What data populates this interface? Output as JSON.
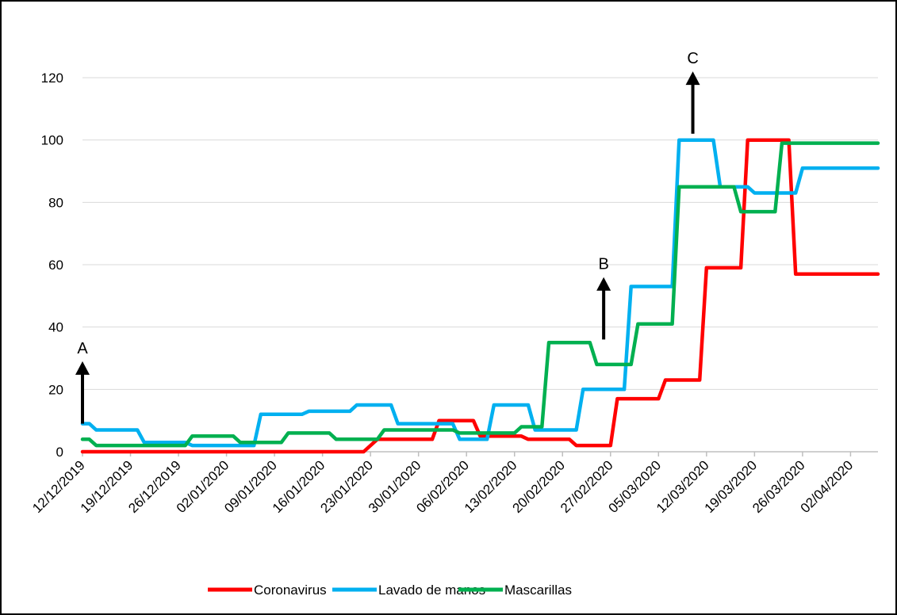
{
  "chart_data": {
    "type": "line",
    "title": "",
    "xlabel": "",
    "ylabel": "",
    "ylim": [
      0,
      120
    ],
    "yticks": [
      0,
      20,
      40,
      60,
      80,
      100,
      120
    ],
    "grid": "horizontal",
    "legend_position": "bottom",
    "x_tick_labels": [
      "12/12/2019",
      "19/12/2019",
      "26/12/2019",
      "02/01/2020",
      "09/01/2020",
      "16/01/2020",
      "23/01/2020",
      "30/01/2020",
      "06/02/2020",
      "13/02/2020",
      "20/02/2020",
      "27/02/2020",
      "05/03/2020",
      "12/03/2020",
      "19/03/2020",
      "26/03/2020",
      "02/04/2020"
    ],
    "x_start": "12/12/2019",
    "x_end": "06/04/2020",
    "series": [
      {
        "name": "Coronavirus",
        "color": "#ff0000",
        "points": [
          [
            "12/12/2019",
            0
          ],
          [
            "22/01/2020",
            0
          ],
          [
            "24/01/2020",
            4
          ],
          [
            "01/02/2020",
            4
          ],
          [
            "02/02/2020",
            10
          ],
          [
            "07/02/2020",
            10
          ],
          [
            "08/02/2020",
            5
          ],
          [
            "14/02/2020",
            5
          ],
          [
            "15/02/2020",
            4
          ],
          [
            "21/02/2020",
            4
          ],
          [
            "22/02/2020",
            2
          ],
          [
            "27/02/2020",
            2
          ],
          [
            "28/02/2020",
            17
          ],
          [
            "05/03/2020",
            17
          ],
          [
            "06/03/2020",
            23
          ],
          [
            "11/03/2020",
            23
          ],
          [
            "12/03/2020",
            59
          ],
          [
            "17/03/2020",
            59
          ],
          [
            "18/03/2020",
            100
          ],
          [
            "24/03/2020",
            100
          ],
          [
            "25/03/2020",
            57
          ],
          [
            "06/04/2020",
            57
          ]
        ]
      },
      {
        "name": "Lavado de manos",
        "color": "#00b0f0",
        "points": [
          [
            "12/12/2019",
            9
          ],
          [
            "13/12/2019",
            9
          ],
          [
            "14/12/2019",
            7
          ],
          [
            "20/12/2019",
            7
          ],
          [
            "21/12/2019",
            3
          ],
          [
            "27/12/2019",
            3
          ],
          [
            "28/12/2019",
            2
          ],
          [
            "06/01/2020",
            2
          ],
          [
            "07/01/2020",
            12
          ],
          [
            "13/01/2020",
            12
          ],
          [
            "14/01/2020",
            13
          ],
          [
            "20/01/2020",
            13
          ],
          [
            "21/01/2020",
            15
          ],
          [
            "26/01/2020",
            15
          ],
          [
            "27/01/2020",
            9
          ],
          [
            "04/02/2020",
            9
          ],
          [
            "05/02/2020",
            4
          ],
          [
            "09/02/2020",
            4
          ],
          [
            "10/02/2020",
            15
          ],
          [
            "15/02/2020",
            15
          ],
          [
            "16/02/2020",
            7
          ],
          [
            "22/02/2020",
            7
          ],
          [
            "23/02/2020",
            20
          ],
          [
            "29/02/2020",
            20
          ],
          [
            "01/03/2020",
            53
          ],
          [
            "07/03/2020",
            53
          ],
          [
            "08/03/2020",
            100
          ],
          [
            "13/03/2020",
            100
          ],
          [
            "14/03/2020",
            85
          ],
          [
            "18/03/2020",
            85
          ],
          [
            "19/03/2020",
            83
          ],
          [
            "25/03/2020",
            83
          ],
          [
            "26/03/2020",
            91
          ],
          [
            "06/04/2020",
            91
          ]
        ]
      },
      {
        "name": "Mascarillas",
        "color": "#00b050",
        "points": [
          [
            "12/12/2019",
            4
          ],
          [
            "13/12/2019",
            4
          ],
          [
            "14/12/2019",
            2
          ],
          [
            "27/12/2019",
            2
          ],
          [
            "28/12/2019",
            5
          ],
          [
            "03/01/2020",
            5
          ],
          [
            "04/01/2020",
            3
          ],
          [
            "10/01/2020",
            3
          ],
          [
            "11/01/2020",
            6
          ],
          [
            "17/01/2020",
            6
          ],
          [
            "18/01/2020",
            4
          ],
          [
            "24/01/2020",
            4
          ],
          [
            "25/01/2020",
            7
          ],
          [
            "04/02/2020",
            7
          ],
          [
            "05/02/2020",
            6
          ],
          [
            "13/02/2020",
            6
          ],
          [
            "14/02/2020",
            8
          ],
          [
            "17/02/2020",
            8
          ],
          [
            "18/02/2020",
            35
          ],
          [
            "24/02/2020",
            35
          ],
          [
            "25/02/2020",
            28
          ],
          [
            "01/03/2020",
            28
          ],
          [
            "02/03/2020",
            41
          ],
          [
            "07/03/2020",
            41
          ],
          [
            "08/03/2020",
            85
          ],
          [
            "16/03/2020",
            85
          ],
          [
            "17/03/2020",
            77
          ],
          [
            "22/03/2020",
            77
          ],
          [
            "23/03/2020",
            99
          ],
          [
            "06/04/2020",
            99
          ]
        ]
      }
    ],
    "annotations": [
      {
        "label": "A",
        "date": "12/12/2019",
        "arrow_from": 9,
        "arrow_to": 29
      },
      {
        "label": "B",
        "date": "26/02/2020",
        "arrow_from": 36,
        "arrow_to": 56
      },
      {
        "label": "C",
        "date": "10/03/2020",
        "arrow_from": 102,
        "arrow_to": 122
      }
    ]
  }
}
